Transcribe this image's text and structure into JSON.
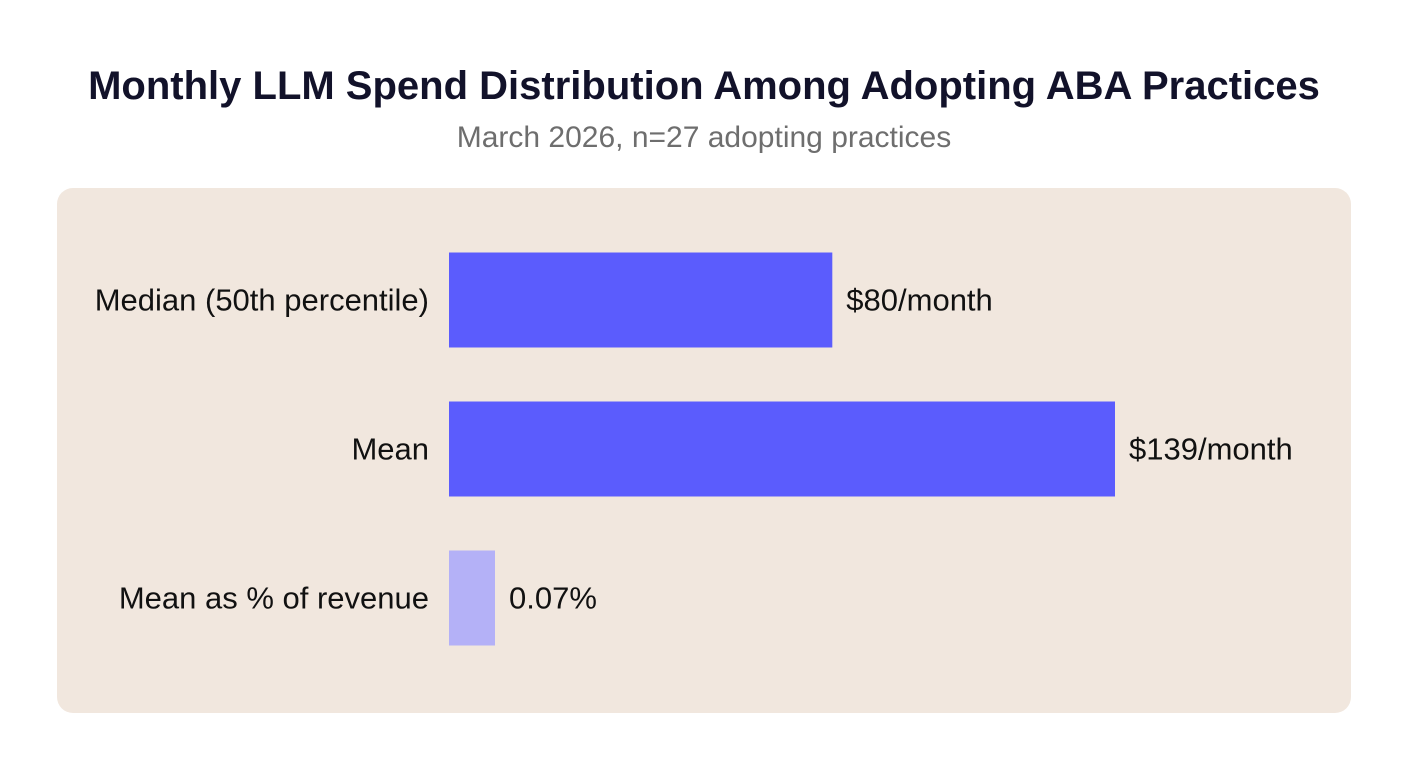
{
  "chart_data": {
    "type": "bar",
    "orientation": "horizontal",
    "title": "Monthly LLM Spend Distribution Among Adopting ABA Practices",
    "subtitle": "March 2026, n=27 adopting practices",
    "categories": [
      "Median (50th percentile)",
      "Mean",
      "Mean as % of revenue"
    ],
    "values": [
      80,
      139,
      0.07
    ],
    "value_labels": [
      "$80/month",
      "$139/month",
      "0.07%"
    ],
    "units": [
      "$/month",
      "$/month",
      "%"
    ],
    "bar_colors": [
      "#5b5cfd",
      "#5b5cfd",
      "#b4b1f7"
    ],
    "background_color": "#f1e7de",
    "grid": false,
    "legend": "none"
  }
}
